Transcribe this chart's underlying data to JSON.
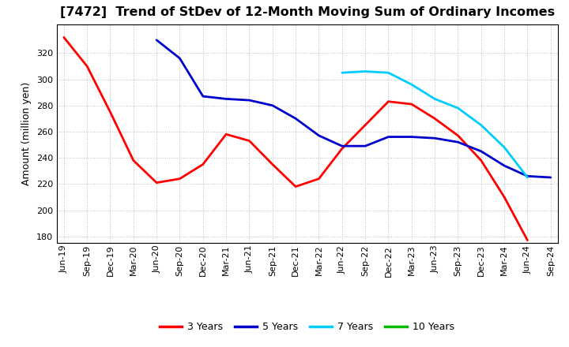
{
  "title": "[7472]  Trend of StDev of 12-Month Moving Sum of Ordinary Incomes",
  "ylabel": "Amount (million yen)",
  "ylim": [
    175,
    342
  ],
  "yticks": [
    180,
    200,
    220,
    240,
    260,
    280,
    300,
    320
  ],
  "background_color": "#ffffff",
  "grid_color": "#bbbbbb",
  "title_fontsize": 11.5,
  "label_fontsize": 9,
  "tick_fontsize": 8,
  "x_labels": [
    "Jun-19",
    "Sep-19",
    "Dec-19",
    "Mar-20",
    "Jun-20",
    "Sep-20",
    "Dec-20",
    "Mar-21",
    "Jun-21",
    "Sep-21",
    "Dec-21",
    "Mar-22",
    "Jun-22",
    "Sep-22",
    "Dec-22",
    "Mar-23",
    "Jun-23",
    "Sep-23",
    "Dec-23",
    "Mar-24",
    "Jun-24",
    "Sep-24"
  ],
  "series": {
    "3 Years": {
      "color": "#ff0000",
      "linewidth": 2.0,
      "data": [
        332,
        310,
        275,
        238,
        221,
        224,
        235,
        258,
        253,
        235,
        218,
        224,
        247,
        265,
        283,
        281,
        270,
        257,
        238,
        210,
        177,
        null
      ]
    },
    "5 Years": {
      "color": "#0000cc",
      "linewidth": 2.0,
      "data": [
        null,
        null,
        null,
        null,
        330,
        316,
        287,
        285,
        284,
        280,
        270,
        257,
        249,
        249,
        256,
        256,
        255,
        252,
        245,
        234,
        226,
        225
      ]
    },
    "7 Years": {
      "color": "#00ccff",
      "linewidth": 2.0,
      "data": [
        null,
        null,
        null,
        null,
        null,
        null,
        null,
        null,
        null,
        null,
        null,
        null,
        305,
        306,
        305,
        296,
        285,
        278,
        265,
        248,
        225,
        null
      ]
    },
    "10 Years": {
      "color": "#00bb00",
      "linewidth": 2.0,
      "data": [
        null,
        null,
        null,
        null,
        null,
        null,
        null,
        null,
        null,
        null,
        null,
        null,
        null,
        null,
        null,
        null,
        null,
        null,
        null,
        null,
        null,
        null
      ]
    }
  },
  "legend_order": [
    "3 Years",
    "5 Years",
    "7 Years",
    "10 Years"
  ]
}
